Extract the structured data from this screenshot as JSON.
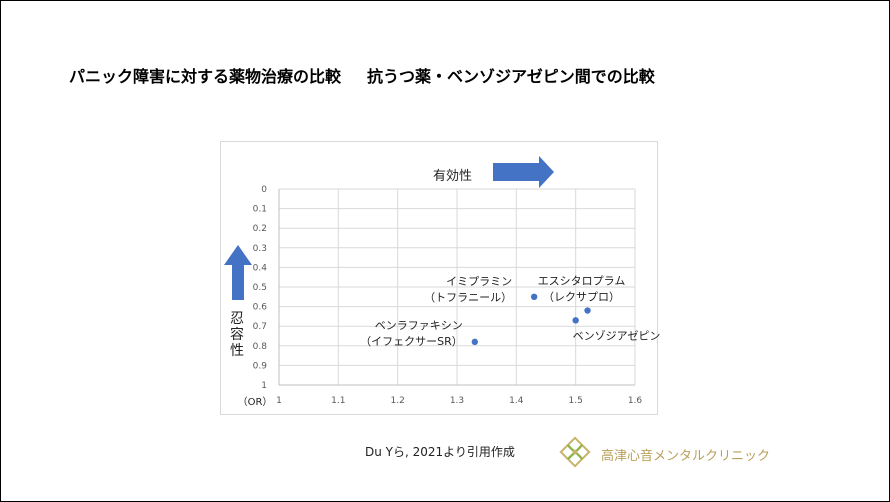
{
  "slide": {
    "title_left": "パニック障害に対する薬物治療の比較",
    "title_right": "抗うつ薬・ベンゾジアゼピン間での比較",
    "citation": "Du Yら, 2021より引用作成",
    "clinic_name": "高津心音メンタルクリニック"
  },
  "chart_data": {
    "type": "scatter",
    "title": "",
    "xlabel": "有効性",
    "ylabel": "忍容性",
    "ylabel_unit": "（OR）",
    "xlim": [
      1,
      1.6
    ],
    "ylim": [
      0,
      1
    ],
    "y_inverted": true,
    "grid": true,
    "x_ticks": [
      "1",
      "1.1",
      "1.2",
      "1.3",
      "1.4",
      "1.5",
      "1.6"
    ],
    "y_ticks": [
      "0",
      "0.1",
      "0.2",
      "0.3",
      "0.4",
      "0.5",
      "0.6",
      "0.7",
      "0.8",
      "0.9",
      "1"
    ],
    "points": [
      {
        "label1": "イミプラミン",
        "label2": "（トフラニール）",
        "x": 1.43,
        "y": 0.55
      },
      {
        "label1": "エスシタロプラム",
        "label2": "（レクサプロ）",
        "x": 1.52,
        "y": 0.62
      },
      {
        "label1": "ベンゾジアゼピン",
        "label2": "",
        "x": 1.5,
        "y": 0.67
      },
      {
        "label1": "ベンラファキシン",
        "label2": "（イフェクサーSR）",
        "x": 1.33,
        "y": 0.78
      }
    ],
    "marker_color": "#4472c4",
    "arrow_color": "#4472c4"
  }
}
